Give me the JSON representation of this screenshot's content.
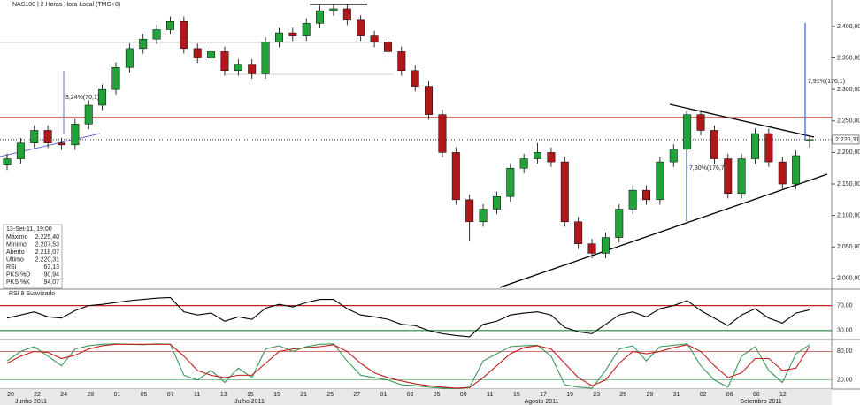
{
  "chart_data": {
    "type": "candlestick",
    "title": "NAS100 | 2 Horas Hora Local (TMG+0)",
    "ohlc": [
      [
        2180,
        2198,
        2172,
        2190
      ],
      [
        2190,
        2223,
        2182,
        2215
      ],
      [
        2215,
        2243,
        2207,
        2235
      ],
      [
        2235,
        2243,
        2207,
        2215
      ],
      [
        2215,
        2223,
        2204,
        2212
      ],
      [
        2212,
        2253,
        2204,
        2245
      ],
      [
        2245,
        2283,
        2237,
        2275
      ],
      [
        2275,
        2308,
        2267,
        2300
      ],
      [
        2300,
        2343,
        2292,
        2335
      ],
      [
        2335,
        2373,
        2327,
        2365
      ],
      [
        2365,
        2388,
        2357,
        2380
      ],
      [
        2380,
        2403,
        2372,
        2395
      ],
      [
        2395,
        2416,
        2387,
        2408
      ],
      [
        2408,
        2416,
        2357,
        2365
      ],
      [
        2365,
        2373,
        2342,
        2350
      ],
      [
        2350,
        2368,
        2342,
        2360
      ],
      [
        2360,
        2368,
        2322,
        2330
      ],
      [
        2330,
        2348,
        2322,
        2340
      ],
      [
        2340,
        2348,
        2317,
        2325
      ],
      [
        2325,
        2383,
        2317,
        2375
      ],
      [
        2375,
        2398,
        2367,
        2390
      ],
      [
        2390,
        2398,
        2377,
        2385
      ],
      [
        2385,
        2413,
        2377,
        2405
      ],
      [
        2405,
        2433,
        2397,
        2425
      ],
      [
        2425,
        2436,
        2417,
        2428
      ],
      [
        2428,
        2436,
        2402,
        2410
      ],
      [
        2410,
        2418,
        2377,
        2385
      ],
      [
        2385,
        2393,
        2367,
        2375
      ],
      [
        2375,
        2383,
        2352,
        2360
      ],
      [
        2360,
        2368,
        2322,
        2330
      ],
      [
        2330,
        2338,
        2297,
        2305
      ],
      [
        2305,
        2313,
        2252,
        2260
      ],
      [
        2260,
        2268,
        2192,
        2200
      ],
      [
        2200,
        2208,
        2117,
        2125
      ],
      [
        2125,
        2133,
        2060,
        2090
      ],
      [
        2090,
        2118,
        2082,
        2110
      ],
      [
        2110,
        2138,
        2102,
        2130
      ],
      [
        2130,
        2183,
        2122,
        2175
      ],
      [
        2175,
        2198,
        2167,
        2190
      ],
      [
        2190,
        2215,
        2182,
        2200
      ],
      [
        2200,
        2208,
        2177,
        2185
      ],
      [
        2185,
        2193,
        2082,
        2090
      ],
      [
        2090,
        2098,
        2047,
        2055
      ],
      [
        2055,
        2063,
        2032,
        2040
      ],
      [
        2040,
        2073,
        2032,
        2065
      ],
      [
        2065,
        2118,
        2057,
        2110
      ],
      [
        2110,
        2148,
        2102,
        2140
      ],
      [
        2140,
        2148,
        2117,
        2125
      ],
      [
        2125,
        2193,
        2117,
        2185
      ],
      [
        2185,
        2213,
        2177,
        2205
      ],
      [
        2205,
        2268,
        2197,
        2260
      ],
      [
        2260,
        2268,
        2227,
        2235
      ],
      [
        2235,
        2243,
        2182,
        2190
      ],
      [
        2190,
        2198,
        2127,
        2135
      ],
      [
        2135,
        2198,
        2127,
        2190
      ],
      [
        2190,
        2238,
        2182,
        2230
      ],
      [
        2230,
        2238,
        2177,
        2185
      ],
      [
        2185,
        2193,
        2142,
        2150
      ],
      [
        2150,
        2203,
        2142,
        2195
      ],
      [
        2218.07,
        2225.4,
        2207.53,
        2220.31
      ]
    ],
    "up_color": "#22a33a",
    "down_color": "#b0171b",
    "ylim": [
      1983,
      2442
    ],
    "yticks": [
      {
        "value": 2000,
        "label": "2.000,00"
      },
      {
        "value": 2050,
        "label": "2.050,00"
      },
      {
        "value": 2100,
        "label": "2.100,00"
      },
      {
        "value": 2150,
        "label": "2.150,00"
      },
      {
        "value": 2200,
        "label": "2.200,00"
      },
      {
        "value": 2250,
        "label": "2.250,00"
      },
      {
        "value": 2300,
        "label": "2.300,00"
      },
      {
        "value": 2350,
        "label": "2.350,00"
      },
      {
        "value": 2400,
        "label": "2.400,00"
      }
    ],
    "last_price": {
      "value": 2220.31,
      "label": "2.220,31"
    },
    "annotations": [
      "3,24%(70,1)",
      "7,80%(176,7)",
      "7,91%(176,1)"
    ],
    "rsi": {
      "title": "RSI 9 Suavizado",
      "color": "#000000",
      "values": [
        50,
        55,
        60,
        52,
        50,
        62,
        70,
        72,
        75,
        78,
        80,
        82,
        83,
        60,
        55,
        58,
        45,
        52,
        48,
        66,
        72,
        68,
        75,
        80,
        80,
        65,
        55,
        52,
        48,
        40,
        38,
        30,
        25,
        22,
        20,
        40,
        45,
        55,
        58,
        60,
        55,
        35,
        28,
        25,
        40,
        55,
        60,
        52,
        65,
        70,
        78,
        62,
        50,
        38,
        55,
        65,
        50,
        42,
        58,
        63.13
      ],
      "ylim": [
        17,
        95
      ],
      "yticks": [
        {
          "value": 70,
          "label": "70,00"
        },
        {
          "value": 30,
          "label": "30,00"
        }
      ]
    },
    "stochastic": {
      "ylim": [
        1,
        103
      ],
      "yticks": [
        {
          "value": 80,
          "label": "80,00"
        },
        {
          "value": 20,
          "label": "20,00"
        }
      ],
      "series": [
        {
          "name": "PKS %K",
          "color": "#3a9a5a",
          "values": [
            60,
            80,
            90,
            70,
            50,
            85,
            92,
            95,
            96,
            95,
            94,
            96,
            95,
            30,
            20,
            40,
            15,
            45,
            25,
            85,
            92,
            80,
            90,
            95,
            96,
            60,
            30,
            25,
            20,
            10,
            8,
            5,
            3,
            2,
            5,
            60,
            75,
            90,
            92,
            93,
            70,
            10,
            5,
            3,
            40,
            85,
            92,
            60,
            90,
            93,
            96,
            50,
            20,
            5,
            70,
            90,
            40,
            15,
            75,
            94.07
          ]
        },
        {
          "name": "PKS %D",
          "color": "#c0201e",
          "values": [
            55,
            70,
            80,
            78,
            65,
            72,
            85,
            92,
            95,
            95,
            95,
            95,
            95,
            70,
            40,
            30,
            25,
            30,
            30,
            55,
            80,
            85,
            88,
            90,
            94,
            80,
            55,
            35,
            25,
            18,
            12,
            8,
            5,
            3,
            4,
            25,
            50,
            75,
            88,
            92,
            85,
            55,
            25,
            8,
            20,
            55,
            80,
            75,
            80,
            88,
            94,
            80,
            50,
            25,
            35,
            65,
            65,
            40,
            45,
            90.94
          ]
        }
      ]
    },
    "x_dates": [
      "20",
      "22",
      "24",
      "28",
      "01",
      "05",
      "07",
      "11",
      "13",
      "15",
      "19",
      "21",
      "25",
      "27",
      "01",
      "03",
      "05",
      "09",
      "11",
      "15",
      "17",
      "19",
      "23",
      "25",
      "29",
      "31",
      "02",
      "06",
      "08",
      "12"
    ],
    "months": [
      "Junho 2011",
      "Julho 2011",
      "Agosto 2011",
      "Setembro 2011"
    ],
    "info_box": {
      "date": "13-Set-11, 19:00",
      "rows": [
        [
          "Máximo",
          "2.225,40"
        ],
        [
          "Mínimo",
          "2.207,53"
        ],
        [
          "Aberto",
          "2.218,07"
        ],
        [
          "Último",
          "2.220,31"
        ],
        [
          "RSI",
          "63,13"
        ],
        [
          "PKS %D",
          "90,94"
        ],
        [
          "PKS %K",
          "94,07"
        ]
      ]
    }
  }
}
